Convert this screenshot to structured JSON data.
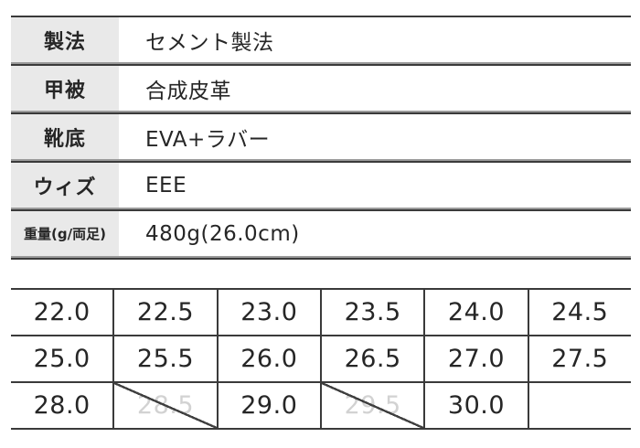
{
  "colors": {
    "background": "#ffffff",
    "rule_dark": "#3a3a3a",
    "rule_light": "#9a9a9a",
    "label_cell_bg": "#e9e9e9",
    "text": "#262626",
    "disabled_text": "#d2d2d2"
  },
  "spec_table": {
    "rows": [
      {
        "label": "製法",
        "value": "セメント製法"
      },
      {
        "label": "甲被",
        "value": "合成皮革"
      },
      {
        "label": "靴底",
        "value": "EVA+ラバー"
      },
      {
        "label": "ウィズ",
        "value": "EEE"
      },
      {
        "label": "重量(g/両足)",
        "value": "480g(26.0cm)"
      }
    ]
  },
  "size_table": {
    "rows": [
      {
        "cells": [
          {
            "value": "22.0"
          },
          {
            "value": "22.5"
          },
          {
            "value": "23.0"
          },
          {
            "value": "23.5"
          },
          {
            "value": "24.0"
          },
          {
            "value": "24.5"
          }
        ]
      },
      {
        "cells": [
          {
            "value": "25.0"
          },
          {
            "value": "25.5"
          },
          {
            "value": "26.0"
          },
          {
            "value": "26.5"
          },
          {
            "value": "27.0"
          },
          {
            "value": "27.5"
          }
        ]
      },
      {
        "cells": [
          {
            "value": "28.0"
          },
          {
            "value": "28.5",
            "unavailable": true
          },
          {
            "value": "29.0"
          },
          {
            "value": "29.5",
            "unavailable": true
          },
          {
            "value": "30.0"
          },
          {
            "value": ""
          }
        ]
      }
    ]
  }
}
